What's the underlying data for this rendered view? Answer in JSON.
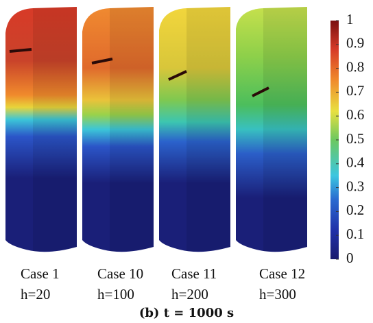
{
  "panels": [
    {
      "case": "Case 1",
      "h": "h=20"
    },
    {
      "case": "Case 10",
      "h": "h=100"
    },
    {
      "case": "Case 11",
      "h": "h=200"
    },
    {
      "case": "Case 12",
      "h": "h=300"
    }
  ],
  "caption": "(b) t = 1000 s",
  "colorbar": {
    "ticks": [
      0,
      0.1,
      0.2,
      0.3,
      0.4,
      0.5,
      0.6,
      0.7,
      0.8,
      0.9,
      1
    ],
    "lim": [
      0,
      1
    ]
  }
}
